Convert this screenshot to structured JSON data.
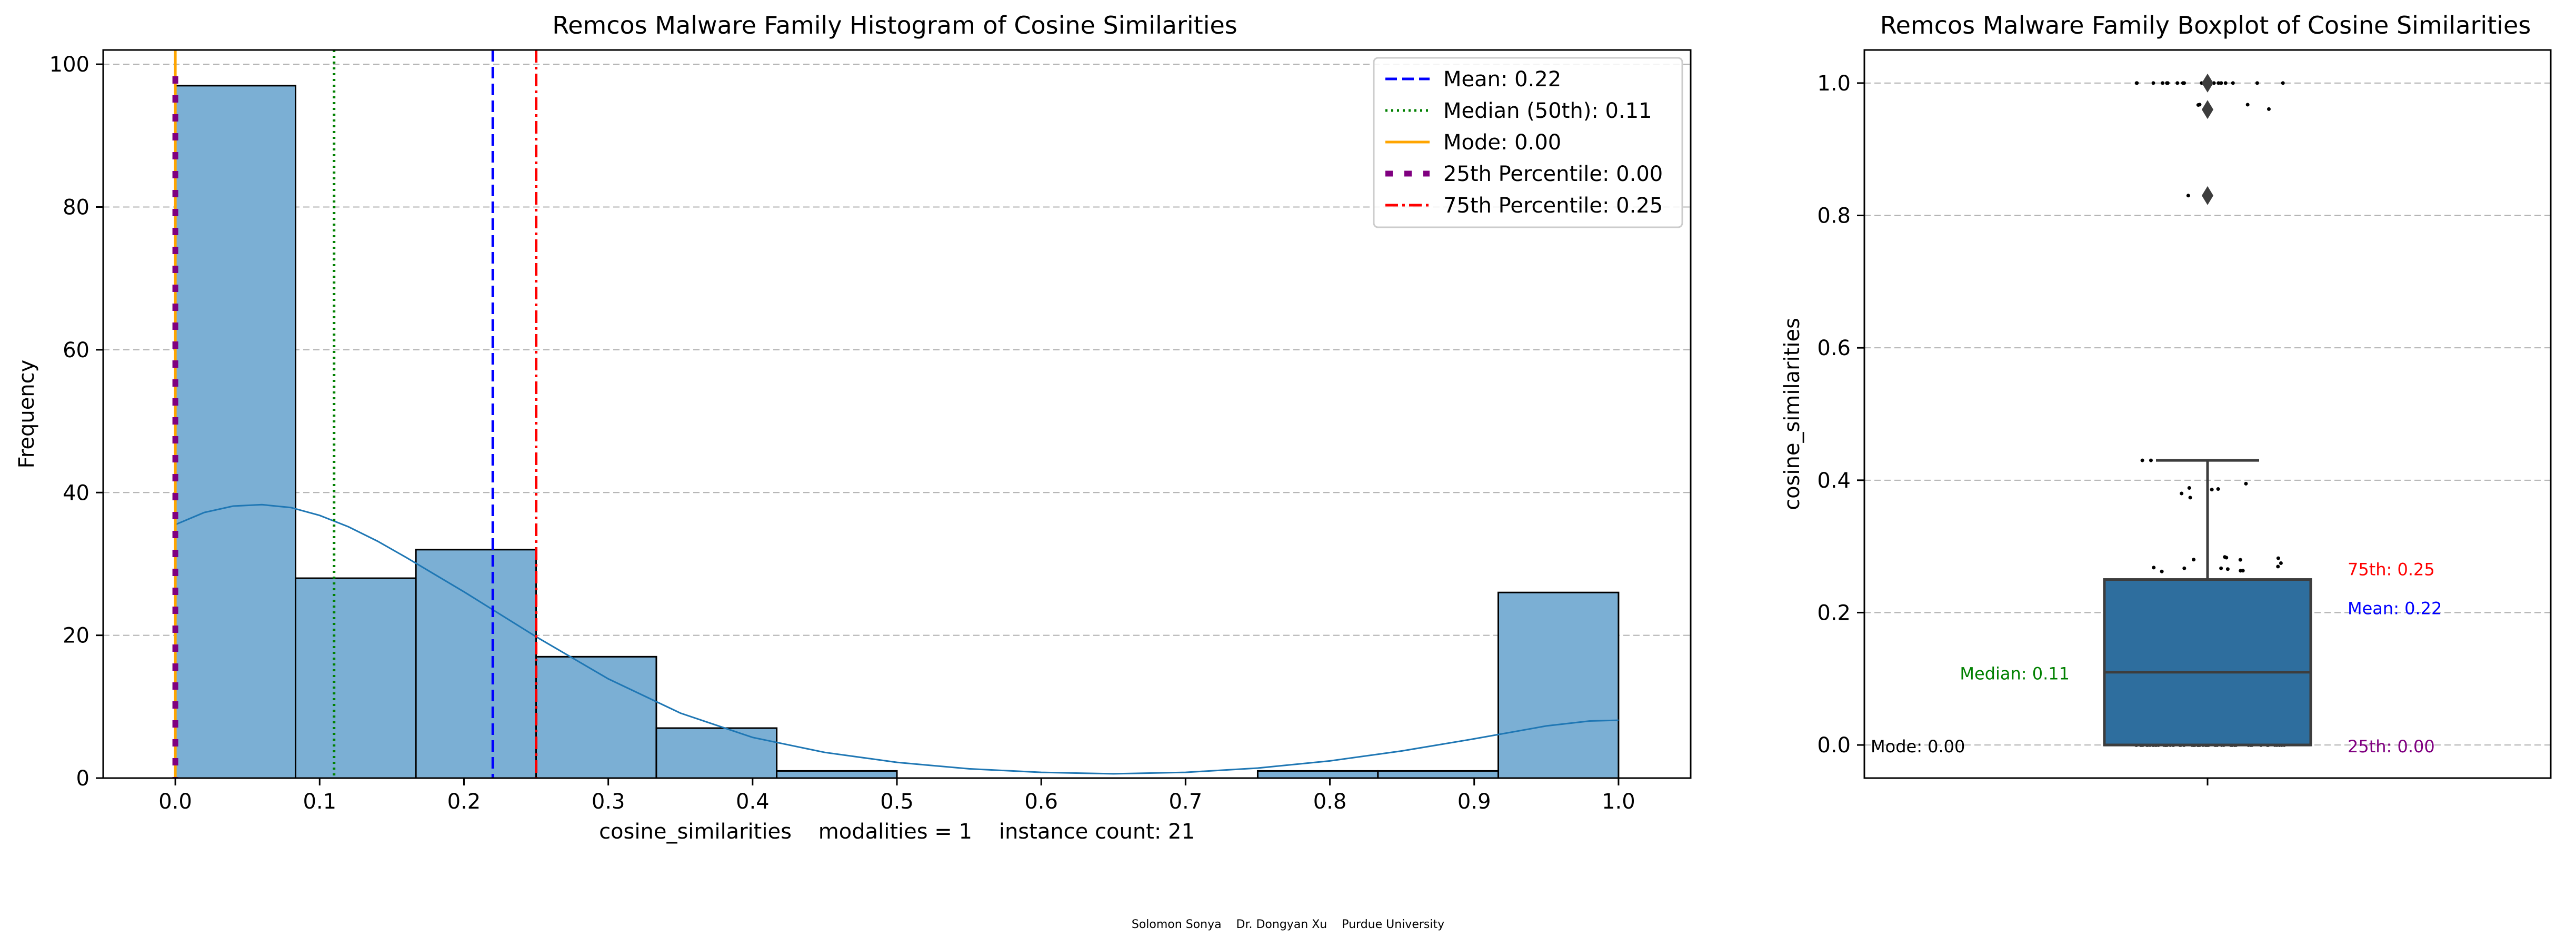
{
  "footer": {
    "text": "Solomon Sonya    Dr. Dongyan Xu    Purdue University"
  },
  "chart_data": [
    {
      "type": "bar",
      "title": "Remcos Malware Family Histogram of Cosine Similarities",
      "xlabel": "cosine_similarities    modalities = 1    instance count: 21",
      "ylabel": "Frequency",
      "xlim": [
        -0.05,
        1.05
      ],
      "ylim": [
        0,
        102
      ],
      "xticks": [
        0.0,
        0.1,
        0.2,
        0.3,
        0.4,
        0.5,
        0.6,
        0.7,
        0.8,
        0.9,
        1.0
      ],
      "xtick_labels": [
        "0.0",
        "0.1",
        "0.2",
        "0.3",
        "0.4",
        "0.5",
        "0.6",
        "0.7",
        "0.8",
        "0.9",
        "1.0"
      ],
      "yticks": [
        0,
        20,
        40,
        60,
        80,
        100
      ],
      "ytick_labels": [
        "0",
        "20",
        "40",
        "60",
        "80",
        "100"
      ],
      "grid": "horizontal-dashed",
      "bar_color": "#7bafd4",
      "bins": [
        {
          "x0": 0.0,
          "x1": 0.0833,
          "count": 97
        },
        {
          "x0": 0.0833,
          "x1": 0.1667,
          "count": 28
        },
        {
          "x0": 0.1667,
          "x1": 0.25,
          "count": 32
        },
        {
          "x0": 0.25,
          "x1": 0.3333,
          "count": 17
        },
        {
          "x0": 0.3333,
          "x1": 0.4167,
          "count": 7
        },
        {
          "x0": 0.4167,
          "x1": 0.5,
          "count": 1
        },
        {
          "x0": 0.5,
          "x1": 0.5833,
          "count": 0
        },
        {
          "x0": 0.5833,
          "x1": 0.6667,
          "count": 0
        },
        {
          "x0": 0.6667,
          "x1": 0.75,
          "count": 0
        },
        {
          "x0": 0.75,
          "x1": 0.8333,
          "count": 1
        },
        {
          "x0": 0.8333,
          "x1": 0.9167,
          "count": 1
        },
        {
          "x0": 0.9167,
          "x1": 1.0,
          "count": 26
        }
      ],
      "kde": {
        "color": "#1f77b4",
        "x": [
          0.0,
          0.02,
          0.04,
          0.06,
          0.08,
          0.1,
          0.12,
          0.14,
          0.16,
          0.18,
          0.2,
          0.25,
          0.3,
          0.35,
          0.4,
          0.45,
          0.5,
          0.55,
          0.6,
          0.65,
          0.7,
          0.75,
          0.8,
          0.85,
          0.9,
          0.95,
          0.98,
          1.0
        ],
        "y": [
          35.5,
          37.2,
          38.1,
          38.3,
          37.9,
          36.8,
          35.2,
          33.2,
          30.9,
          28.5,
          26.1,
          19.8,
          13.9,
          9.1,
          5.7,
          3.6,
          2.2,
          1.3,
          0.8,
          0.6,
          0.8,
          1.4,
          2.4,
          3.8,
          5.5,
          7.3,
          8.0,
          8.1
        ]
      },
      "reference_lines": [
        {
          "label": "Mean: 0.22",
          "value": 0.22,
          "color": "#0000ff",
          "style": "dashed"
        },
        {
          "label": "Median (50th): 0.11",
          "value": 0.11,
          "color": "#008000",
          "style": "dotted"
        },
        {
          "label": "Mode: 0.00",
          "value": 0.0,
          "color": "#ffa500",
          "style": "solid"
        },
        {
          "label": "25th Percentile: 0.00",
          "value": 0.0,
          "color": "#800080",
          "style": "thick-dashed"
        },
        {
          "label": "75th Percentile: 0.25",
          "value": 0.25,
          "color": "#ff0000",
          "style": "dashdot"
        }
      ],
      "legend_position": "top-right"
    },
    {
      "type": "boxplot",
      "title": "Remcos Malware Family Boxplot of Cosine Similarities",
      "ylabel": "cosine_similarities",
      "ylim": [
        -0.05,
        1.05
      ],
      "yticks": [
        0.0,
        0.2,
        0.4,
        0.6,
        0.8,
        1.0
      ],
      "ytick_labels": [
        "0.0",
        "0.2",
        "0.4",
        "0.6",
        "0.8",
        "1.0"
      ],
      "grid": "horizontal-dashed",
      "box_color": "#2e6e9e",
      "stats": {
        "q1": 0.0,
        "median": 0.11,
        "q3": 0.25,
        "whisker_low": 0.0,
        "whisker_high": 0.43,
        "mean": 0.22,
        "mode": 0.0
      },
      "outliers": [
        1.0,
        0.96,
        0.83
      ],
      "strip_points_visible": true,
      "annotations": [
        {
          "text": "75th: 0.25",
          "value": 0.25,
          "side": "right",
          "color": "#ff0000"
        },
        {
          "text": "Mean: 0.22",
          "value": 0.22,
          "side": "right",
          "color": "#0000ff"
        },
        {
          "text": "Median: 0.11",
          "value": 0.11,
          "side": "left",
          "color": "#008000"
        },
        {
          "text": "Mode: 0.00",
          "value": 0.0,
          "side": "far-left",
          "color": "#000000"
        },
        {
          "text": "25th: 0.00",
          "value": 0.0,
          "side": "right",
          "color": "#800080"
        }
      ]
    }
  ]
}
